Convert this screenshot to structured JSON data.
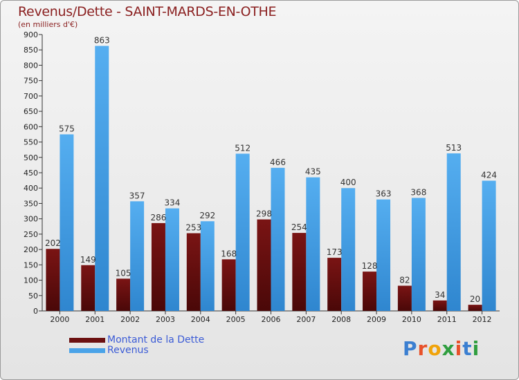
{
  "title": "Revenus/Dette - SAINT-MARDS-EN-OTHE",
  "subtitle": "(en milliers d'€)",
  "legend": {
    "debt_label": "Montant de la Dette",
    "revenue_label": "Revenus"
  },
  "logo": {
    "text": "Proxiti"
  },
  "colors": {
    "debt": "#6b1010",
    "revenue": "#4aa3e8",
    "axis_text": "#222222",
    "title": "#8a1f1f",
    "legend_text": "#3b5bd6"
  },
  "chart_data": {
    "type": "bar",
    "title": "Revenus/Dette - SAINT-MARDS-EN-OTHE",
    "subtitle": "(en milliers d'€)",
    "categories": [
      "2000",
      "2001",
      "2002",
      "2003",
      "2004",
      "2005",
      "2006",
      "2007",
      "2008",
      "2009",
      "2010",
      "2011",
      "2012"
    ],
    "series": [
      {
        "name": "Montant de la Dette",
        "values": [
          202,
          149,
          105,
          286,
          253,
          168,
          298,
          254,
          173,
          128,
          82,
          34,
          20
        ]
      },
      {
        "name": "Revenus",
        "values": [
          575,
          863,
          357,
          334,
          292,
          512,
          466,
          435,
          400,
          363,
          368,
          513,
          424
        ]
      }
    ],
    "ylim": [
      0,
      900
    ],
    "yticks": [
      0,
      50,
      100,
      150,
      200,
      250,
      300,
      350,
      400,
      450,
      500,
      550,
      600,
      650,
      700,
      750,
      800,
      850,
      900
    ],
    "grid": false,
    "legend_position": "bottom-left"
  }
}
